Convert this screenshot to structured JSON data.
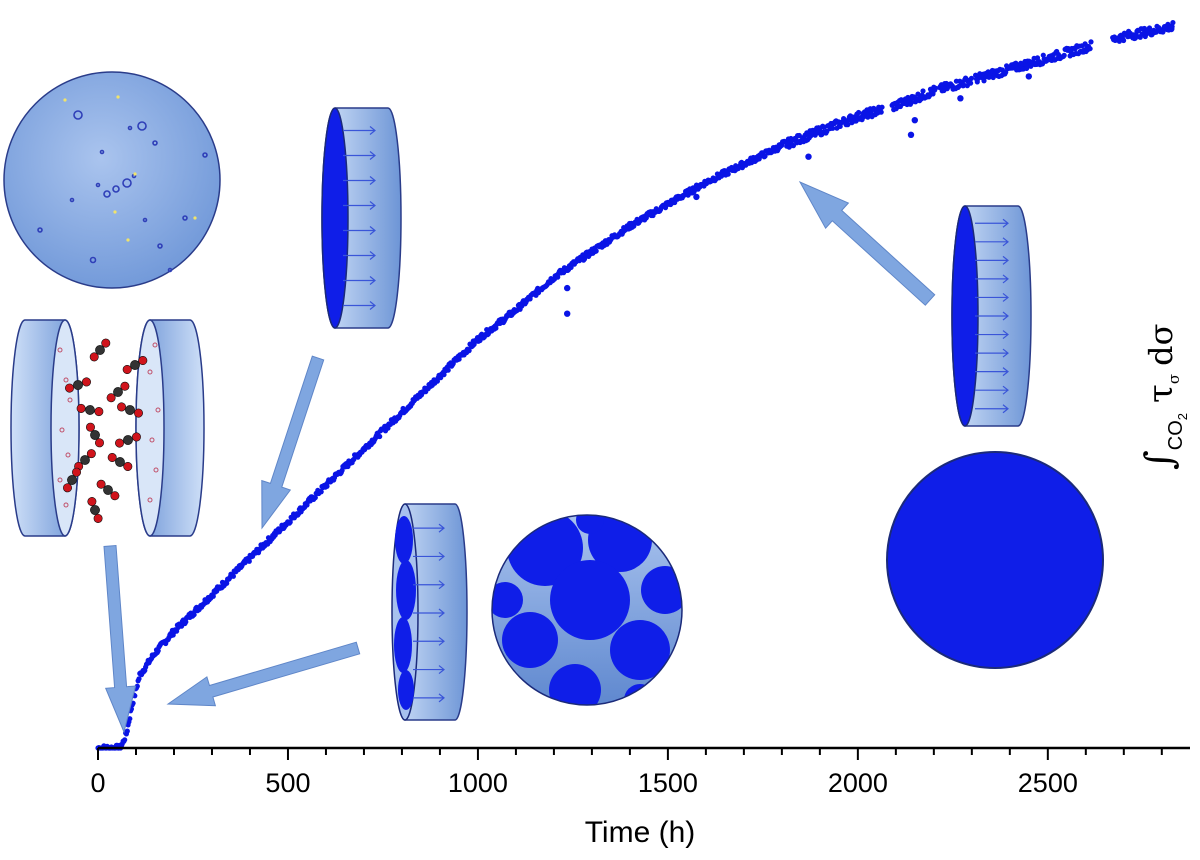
{
  "chart_data": {
    "type": "scatter",
    "title": "",
    "xlabel": "Time (h)",
    "ylabel": {
      "integral": "∫",
      "subscript_main": "CO",
      "subscript_digit": "2",
      "tau": "τ",
      "tau_sub": "σ",
      "d_sigma": "dσ"
    },
    "xlim": [
      0,
      2840
    ],
    "ylim": [
      0,
      1.0
    ],
    "x_ticks": [
      0,
      500,
      1000,
      1500,
      2000,
      2500
    ],
    "x_minor_step": 100,
    "grid": false,
    "legend": "none",
    "marker_color": "#0a14e6",
    "curve_points": [
      [
        0,
        0.0
      ],
      [
        40,
        0.0
      ],
      [
        60,
        0.0
      ],
      [
        75,
        0.02
      ],
      [
        90,
        0.06
      ],
      [
        110,
        0.1
      ],
      [
        150,
        0.13
      ],
      [
        200,
        0.16
      ],
      [
        300,
        0.21
      ],
      [
        400,
        0.26
      ],
      [
        500,
        0.31
      ],
      [
        600,
        0.36
      ],
      [
        700,
        0.41
      ],
      [
        800,
        0.46
      ],
      [
        900,
        0.51
      ],
      [
        1000,
        0.56
      ],
      [
        1100,
        0.6
      ],
      [
        1200,
        0.645
      ],
      [
        1300,
        0.68
      ],
      [
        1400,
        0.715
      ],
      [
        1500,
        0.745
      ],
      [
        1600,
        0.775
      ],
      [
        1700,
        0.8
      ],
      [
        1800,
        0.825
      ],
      [
        1900,
        0.845
      ],
      [
        2000,
        0.865
      ],
      [
        2100,
        0.88
      ],
      [
        2200,
        0.9
      ],
      [
        2300,
        0.915
      ],
      [
        2400,
        0.93
      ],
      [
        2500,
        0.945
      ],
      [
        2600,
        0.96
      ],
      [
        2700,
        0.975
      ],
      [
        2800,
        0.985
      ],
      [
        2830,
        0.99
      ]
    ],
    "gaps": [
      [
        2065,
        2090
      ],
      [
        2205,
        2215
      ],
      [
        2300,
        2310
      ],
      [
        2615,
        2670
      ]
    ],
    "outliers": [
      [
        1235,
        0.63
      ],
      [
        1235,
        0.595
      ],
      [
        1575,
        0.755
      ],
      [
        1420,
        0.72
      ],
      [
        1870,
        0.81
      ],
      [
        2150,
        0.86
      ],
      [
        2140,
        0.84
      ],
      [
        2270,
        0.89
      ],
      [
        2450,
        0.92
      ],
      [
        2825,
        0.985
      ]
    ]
  },
  "colors": {
    "marker": "#0a14e6",
    "disk_fill": "#0f1ee8",
    "pale_blue": "#7ea7e6",
    "light_blue": "#b4cdf2",
    "arrow": "#7fa6e0",
    "stroke": "#1b2a7a",
    "co2_carbon": "#333333",
    "co2_oxygen": "#d0141c"
  },
  "icons": [
    "nucleation-disk-icon",
    "co2-molecule-icon",
    "porous-slab-icon",
    "transformed-slab-icon",
    "partial-disk-icon",
    "full-disk-icon",
    "arrow-icon"
  ]
}
